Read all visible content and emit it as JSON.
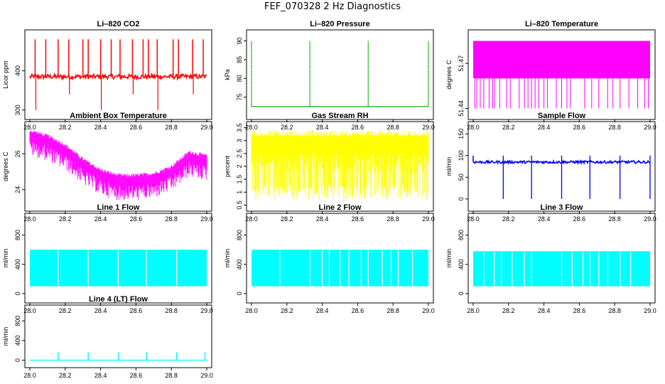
{
  "figure": {
    "title": "FEF_070328  2 Hz Diagnostics"
  },
  "chart_data": [
    {
      "id": "li820-co2",
      "type": "line",
      "title": "Li–820 CO2",
      "ylabel": "Licor ppm",
      "color": "#ff0000",
      "xlim": [
        28.0,
        29.0
      ],
      "ylim": [
        285,
        495
      ],
      "xticks": [
        "28.0",
        "28.2",
        "28.4",
        "28.6",
        "28.8",
        "29.0"
      ],
      "yticks": [
        300,
        400
      ],
      "pattern": {
        "kind": "noisy-spikes",
        "baseline": 385,
        "noise": 6,
        "spike_up": 480,
        "spike_down": 300,
        "spikes_x": [
          28.03,
          28.09,
          28.16,
          28.22,
          28.3,
          28.33,
          28.4,
          28.46,
          28.51,
          28.58,
          28.64,
          28.67,
          28.72,
          28.81,
          28.84,
          28.92,
          28.98
        ]
      }
    },
    {
      "id": "li820-pressure",
      "type": "line",
      "title": "Li–820 Pressure",
      "ylabel": "kPa",
      "color": "#00aa00",
      "xlim": [
        28.0,
        29.0
      ],
      "ylim": [
        70,
        92
      ],
      "xticks": [
        "28.0",
        "28.2",
        "28.4",
        "28.6",
        "28.8",
        "29.0"
      ],
      "yticks": [
        75,
        80,
        85,
        90
      ],
      "pattern": {
        "kind": "baseline-spikes",
        "baseline": 72.5,
        "spike_up": 90,
        "spikes_x": [
          28.0,
          28.33,
          28.66,
          29.0
        ]
      }
    },
    {
      "id": "li820-temperature",
      "type": "line",
      "title": "Li–820 Temperature",
      "ylabel": "degrees C",
      "color": "#ff00ff",
      "xlim": [
        28.0,
        29.0
      ],
      "ylim": [
        51.435,
        51.49
      ],
      "xticks": [
        "28.0",
        "28.2",
        "28.4",
        "28.6",
        "28.8",
        "29.0"
      ],
      "yticks": [
        51.44,
        51.47
      ],
      "pattern": {
        "kind": "solid-band",
        "top": 51.485,
        "bottom": 51.46,
        "drop_to": 51.44,
        "drops_x": [
          28.01,
          28.02,
          28.04,
          28.06,
          28.09,
          28.11,
          28.12,
          28.15,
          28.19,
          28.21,
          28.26,
          28.29,
          28.31,
          28.33,
          28.35,
          28.37,
          28.4,
          28.42,
          28.47,
          28.5,
          28.53,
          28.55,
          28.63,
          28.67,
          28.71,
          28.76,
          28.79,
          28.83,
          28.88,
          28.93,
          28.97,
          28.99
        ]
      }
    },
    {
      "id": "ambient-box-temperature",
      "type": "line",
      "title": "Ambient Box Temperature",
      "ylabel": "degrees C",
      "color": "#ff00ff",
      "xlim": [
        28.0,
        29.0
      ],
      "ylim": [
        23.0,
        27.6
      ],
      "xticks": [
        "28.0",
        "28.2",
        "28.4",
        "28.6",
        "28.8",
        "29.0"
      ],
      "yticks": [
        24,
        26
      ],
      "pattern": {
        "kind": "curve-band",
        "x": [
          28.0,
          28.1,
          28.2,
          28.3,
          28.4,
          28.5,
          28.6,
          28.7,
          28.8,
          28.9,
          29.0
        ],
        "top": [
          27.2,
          26.9,
          26.4,
          25.6,
          25.0,
          24.7,
          24.7,
          24.8,
          25.2,
          26.0,
          25.8
        ],
        "depth": 1.3
      }
    },
    {
      "id": "gas-stream-rh",
      "type": "line",
      "title": "Gas Stream RH",
      "ylabel": "percent",
      "color": "#ffff00",
      "xlim": [
        28.0,
        29.0
      ],
      "ylim": [
        0.4,
        3.6
      ],
      "xticks": [
        "28.0",
        "28.2",
        "28.4",
        "28.6",
        "28.8",
        "29.0"
      ],
      "yticks": [
        0.5,
        1.0,
        1.5,
        2.0,
        2.5,
        3.0,
        3.5
      ],
      "pattern": {
        "kind": "noise-band",
        "top": 3.4,
        "bottom": 0.7,
        "core_low": 2.5
      }
    },
    {
      "id": "sample-flow",
      "type": "line",
      "title": "Sample Flow",
      "ylabel": "ml/min",
      "color": "#0000ff",
      "xlim": [
        28.0,
        29.0
      ],
      "ylim": [
        -20,
        170
      ],
      "xticks": [
        "28.0",
        "28.2",
        "28.4",
        "28.6",
        "28.8",
        "29.0"
      ],
      "yticks": [
        0,
        50,
        100,
        150
      ],
      "pattern": {
        "kind": "baseline-drops",
        "baseline": 85,
        "noise": 3,
        "spike_up": 100,
        "drop_to": 0,
        "drops_x": [
          28.17,
          28.33,
          28.5,
          28.66,
          28.83,
          29.0
        ]
      }
    },
    {
      "id": "line-1-flow",
      "type": "line",
      "title": "Line 1 Flow",
      "ylabel": "ml/min",
      "color": "#00ffff",
      "xlim": [
        28.0,
        29.0
      ],
      "ylim": [
        -80,
        1050
      ],
      "xticks": [
        "28.0",
        "28.2",
        "28.4",
        "28.6",
        "28.8",
        "29.0"
      ],
      "yticks": [
        0,
        400,
        800
      ],
      "pattern": {
        "kind": "block-band",
        "top": 600,
        "bottom": 100,
        "gaps_x": [
          28.16,
          28.33,
          28.5,
          28.66,
          28.83
        ]
      }
    },
    {
      "id": "line-2-flow",
      "type": "line",
      "title": "Line 2 Flow",
      "ylabel": "ml/min",
      "color": "#00ffff",
      "xlim": [
        28.0,
        29.0
      ],
      "ylim": [
        -80,
        1050
      ],
      "xticks": [
        "28.0",
        "28.2",
        "28.4",
        "28.6",
        "28.8",
        "29.0"
      ],
      "yticks": [
        0,
        400,
        800
      ],
      "pattern": {
        "kind": "block-band",
        "top": 600,
        "bottom": 100,
        "gaps_x": [
          28.16,
          28.33,
          28.4,
          28.44,
          28.5,
          28.55,
          28.62,
          28.66,
          28.74,
          28.79,
          28.83,
          28.91
        ]
      }
    },
    {
      "id": "line-3-flow",
      "type": "line",
      "title": "Line 3 Flow",
      "ylabel": "ml/min",
      "color": "#00ffff",
      "xlim": [
        28.0,
        29.0
      ],
      "ylim": [
        -80,
        1050
      ],
      "xticks": [
        "28.0",
        "28.2",
        "28.4",
        "28.6",
        "28.8",
        "29.0"
      ],
      "yticks": [
        0,
        400,
        800
      ],
      "pattern": {
        "kind": "block-band",
        "top": 580,
        "bottom": 100,
        "gaps_x": [
          28.06,
          28.12,
          28.16,
          28.22,
          28.29,
          28.33,
          28.5,
          28.56,
          28.62,
          28.66,
          28.71,
          28.76,
          28.83,
          28.89
        ]
      }
    },
    {
      "id": "line-4-lt-flow",
      "type": "line",
      "title": "Line 4 (LT) Flow",
      "ylabel": "ml/min",
      "color": "#00ffff",
      "xlim": [
        28.0,
        29.0
      ],
      "ylim": [
        -80,
        1050
      ],
      "xticks": [
        "28.0",
        "28.2",
        "28.4",
        "28.6",
        "28.8",
        "29.0"
      ],
      "yticks": [
        0,
        400,
        800
      ],
      "pattern": {
        "kind": "baseline-spikes",
        "baseline": 0,
        "spike_up": 160,
        "spikes_x": [
          28.16,
          28.33,
          28.5,
          28.66,
          28.83,
          28.99
        ]
      }
    }
  ]
}
